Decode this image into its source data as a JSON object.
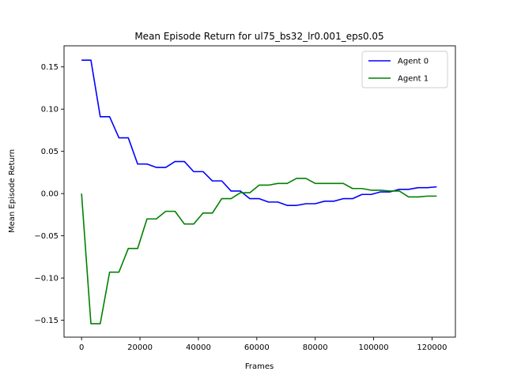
{
  "chart_data": {
    "type": "line",
    "title": "Mean Episode Return for ul75_bs32_lr0.001_eps0.05",
    "xlabel": "Frames",
    "ylabel": "Mean Episode Return",
    "xlim": [
      -6000,
      128000
    ],
    "ylim": [
      -0.17,
      0.175
    ],
    "xticks": [
      0,
      20000,
      40000,
      60000,
      80000,
      100000,
      120000
    ],
    "xtick_labels": [
      "0",
      "20000",
      "40000",
      "60000",
      "80000",
      "100000",
      "120000"
    ],
    "yticks": [
      -0.15,
      -0.1,
      -0.05,
      0.0,
      0.05,
      0.1,
      0.15
    ],
    "ytick_labels": [
      "−0.15",
      "−0.10",
      "−0.05",
      "0.00",
      "0.05",
      "0.10",
      "0.15"
    ],
    "legend": "top-right",
    "grid": false,
    "series": [
      {
        "name": "Agent 0",
        "color": "#0000ff",
        "points": [
          [
            0,
            0.158
          ],
          [
            3200,
            0.158
          ],
          [
            6400,
            0.091
          ],
          [
            9600,
            0.091
          ],
          [
            12800,
            0.066
          ],
          [
            16000,
            0.066
          ],
          [
            19200,
            0.035
          ],
          [
            22400,
            0.035
          ],
          [
            25600,
            0.031
          ],
          [
            28800,
            0.031
          ],
          [
            32000,
            0.038
          ],
          [
            35200,
            0.038
          ],
          [
            38400,
            0.026
          ],
          [
            41600,
            0.026
          ],
          [
            44800,
            0.015
          ],
          [
            48000,
            0.015
          ],
          [
            51200,
            0.003
          ],
          [
            54400,
            0.003
          ],
          [
            57600,
            -0.006
          ],
          [
            60800,
            -0.006
          ],
          [
            64000,
            -0.01
          ],
          [
            67200,
            -0.01
          ],
          [
            70400,
            -0.014
          ],
          [
            73600,
            -0.014
          ],
          [
            76800,
            -0.012
          ],
          [
            80000,
            -0.012
          ],
          [
            83200,
            -0.009
          ],
          [
            86400,
            -0.009
          ],
          [
            89600,
            -0.006
          ],
          [
            92800,
            -0.006
          ],
          [
            96000,
            -0.001
          ],
          [
            99200,
            -0.001
          ],
          [
            102400,
            0.002
          ],
          [
            105600,
            0.002
          ],
          [
            108800,
            0.005
          ],
          [
            112000,
            0.005
          ],
          [
            115200,
            0.007
          ],
          [
            118400,
            0.007
          ],
          [
            121600,
            0.008
          ]
        ]
      },
      {
        "name": "Agent 1",
        "color": "#008000",
        "points": [
          [
            0,
            0.0
          ],
          [
            3200,
            -0.154
          ],
          [
            6400,
            -0.154
          ],
          [
            9600,
            -0.093
          ],
          [
            12800,
            -0.093
          ],
          [
            16000,
            -0.065
          ],
          [
            19200,
            -0.065
          ],
          [
            22400,
            -0.03
          ],
          [
            25600,
            -0.03
          ],
          [
            28800,
            -0.021
          ],
          [
            32000,
            -0.021
          ],
          [
            35200,
            -0.036
          ],
          [
            38400,
            -0.036
          ],
          [
            41600,
            -0.023
          ],
          [
            44800,
            -0.023
          ],
          [
            48000,
            -0.006
          ],
          [
            51200,
            -0.006
          ],
          [
            54400,
            0.001
          ],
          [
            57600,
            0.001
          ],
          [
            60800,
            0.01
          ],
          [
            64000,
            0.01
          ],
          [
            67200,
            0.012
          ],
          [
            70400,
            0.012
          ],
          [
            73600,
            0.018
          ],
          [
            76800,
            0.018
          ],
          [
            80000,
            0.012
          ],
          [
            83200,
            0.012
          ],
          [
            86400,
            0.012
          ],
          [
            89600,
            0.012
          ],
          [
            92800,
            0.006
          ],
          [
            96000,
            0.006
          ],
          [
            99200,
            0.004
          ],
          [
            102400,
            0.004
          ],
          [
            105600,
            0.003
          ],
          [
            108800,
            0.003
          ],
          [
            112000,
            -0.004
          ],
          [
            115200,
            -0.004
          ],
          [
            118400,
            -0.003
          ],
          [
            121600,
            -0.003
          ]
        ]
      }
    ]
  }
}
